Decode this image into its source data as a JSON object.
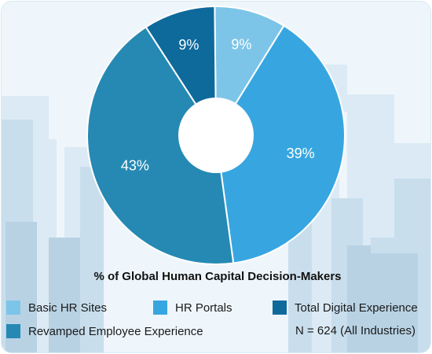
{
  "chart_data": {
    "type": "pie",
    "variant": "donut",
    "title": "% of Global Human Capital Decision-Makers",
    "note": "N = 624 (All Industries)",
    "legend_placement": "bottom",
    "series": [
      {
        "name": "Basic HR Sites",
        "value": 9,
        "label": "9%",
        "color": "#7cc5e8"
      },
      {
        "name": "HR Portals",
        "value": 39,
        "label": "39%",
        "color": "#37a6e0"
      },
      {
        "name": "Revamped Employee Experience",
        "value": 43,
        "label": "43%",
        "color": "#2589b4"
      },
      {
        "name": "Total Digital Experience",
        "value": 9,
        "label": "9%",
        "color": "#0f6a9c"
      }
    ]
  }
}
